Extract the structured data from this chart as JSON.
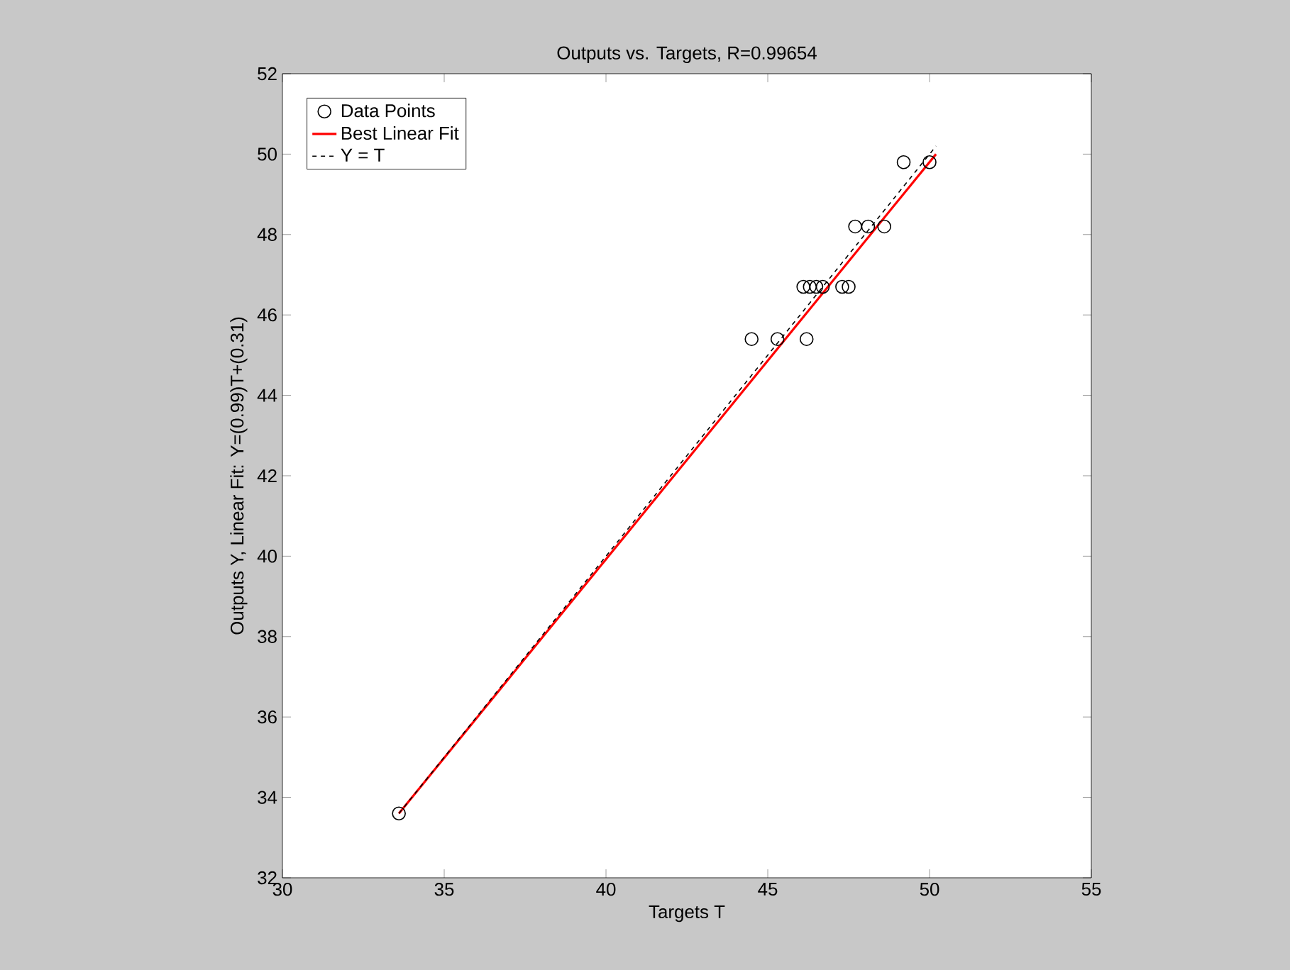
{
  "chart_data": {
    "type": "scatter",
    "title": "Outputs vs. Targets, R=0.99654",
    "xlabel": "Targets T",
    "ylabel": "Outputs Y,  Linear Fit: Y=(0.99)T+(0.31)",
    "xlim": [
      30,
      55
    ],
    "ylim": [
      32,
      52
    ],
    "xticks": [
      30,
      35,
      40,
      45,
      50,
      55
    ],
    "yticks": [
      32,
      34,
      36,
      38,
      40,
      42,
      44,
      46,
      48,
      50,
      52
    ],
    "grid": false,
    "legend": "top left",
    "series": [
      {
        "name": "Data Points",
        "type": "scatter",
        "marker": "circle",
        "color": "#000000",
        "x": [
          33.6,
          44.5,
          45.3,
          46.2,
          46.1,
          46.3,
          46.5,
          46.7,
          47.3,
          47.5,
          47.7,
          48.1,
          48.6,
          49.2,
          50.0
        ],
        "values": [
          33.6,
          45.4,
          45.4,
          45.4,
          46.7,
          46.7,
          46.7,
          46.7,
          46.7,
          46.7,
          48.2,
          48.2,
          48.2,
          49.8,
          49.8
        ]
      },
      {
        "name": "Best Linear Fit",
        "type": "line",
        "marker": "none",
        "line_style": "solid",
        "color": "#ff0000",
        "x": [
          33.6,
          50.2
        ],
        "values": [
          33.6,
          50.0
        ]
      },
      {
        "name": "Y = T",
        "type": "line",
        "marker": "none",
        "line_style": "dashed",
        "color": "#000000",
        "x": [
          33.6,
          50.2
        ],
        "values": [
          33.6,
          50.2
        ]
      }
    ]
  }
}
